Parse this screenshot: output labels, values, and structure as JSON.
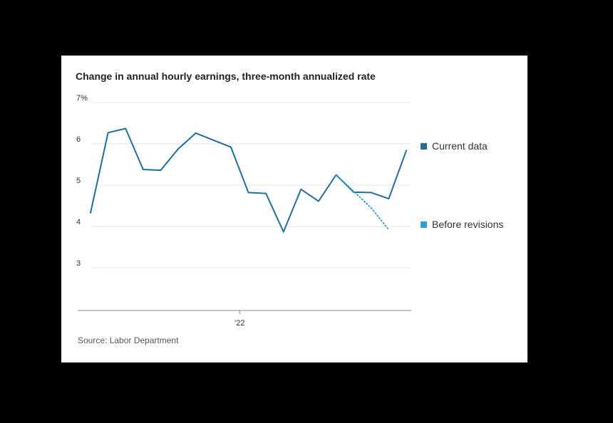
{
  "chart_data": {
    "type": "line",
    "title": "Change in annual hourly earnings, three-month annualized rate",
    "source": "Source: Labor Department",
    "xlabel": "",
    "ylabel": "",
    "ylim": [
      2,
      7
    ],
    "y_ticks": [
      {
        "value": 7,
        "label": "7%"
      },
      {
        "value": 6,
        "label": "6"
      },
      {
        "value": 5,
        "label": "5"
      },
      {
        "value": 4,
        "label": "4"
      },
      {
        "value": 3,
        "label": "3"
      }
    ],
    "x_ticks": [
      {
        "index": 8.5,
        "label": "’22"
      }
    ],
    "grid": true,
    "legend_position": "right",
    "series": [
      {
        "name": "Current data",
        "color": "#1f6f99",
        "style": "solid",
        "values": [
          4.33,
          6.27,
          6.37,
          5.38,
          5.36,
          5.88,
          6.26,
          6.09,
          5.92,
          4.82,
          4.8,
          3.87,
          4.9,
          4.61,
          5.25,
          4.83,
          4.82,
          4.67,
          5.84
        ]
      },
      {
        "name": "Before revisions",
        "color": "#2a9fd6",
        "style": "dotted",
        "start_index": 14,
        "values": [
          5.25,
          4.85,
          4.45,
          3.92
        ]
      }
    ]
  }
}
